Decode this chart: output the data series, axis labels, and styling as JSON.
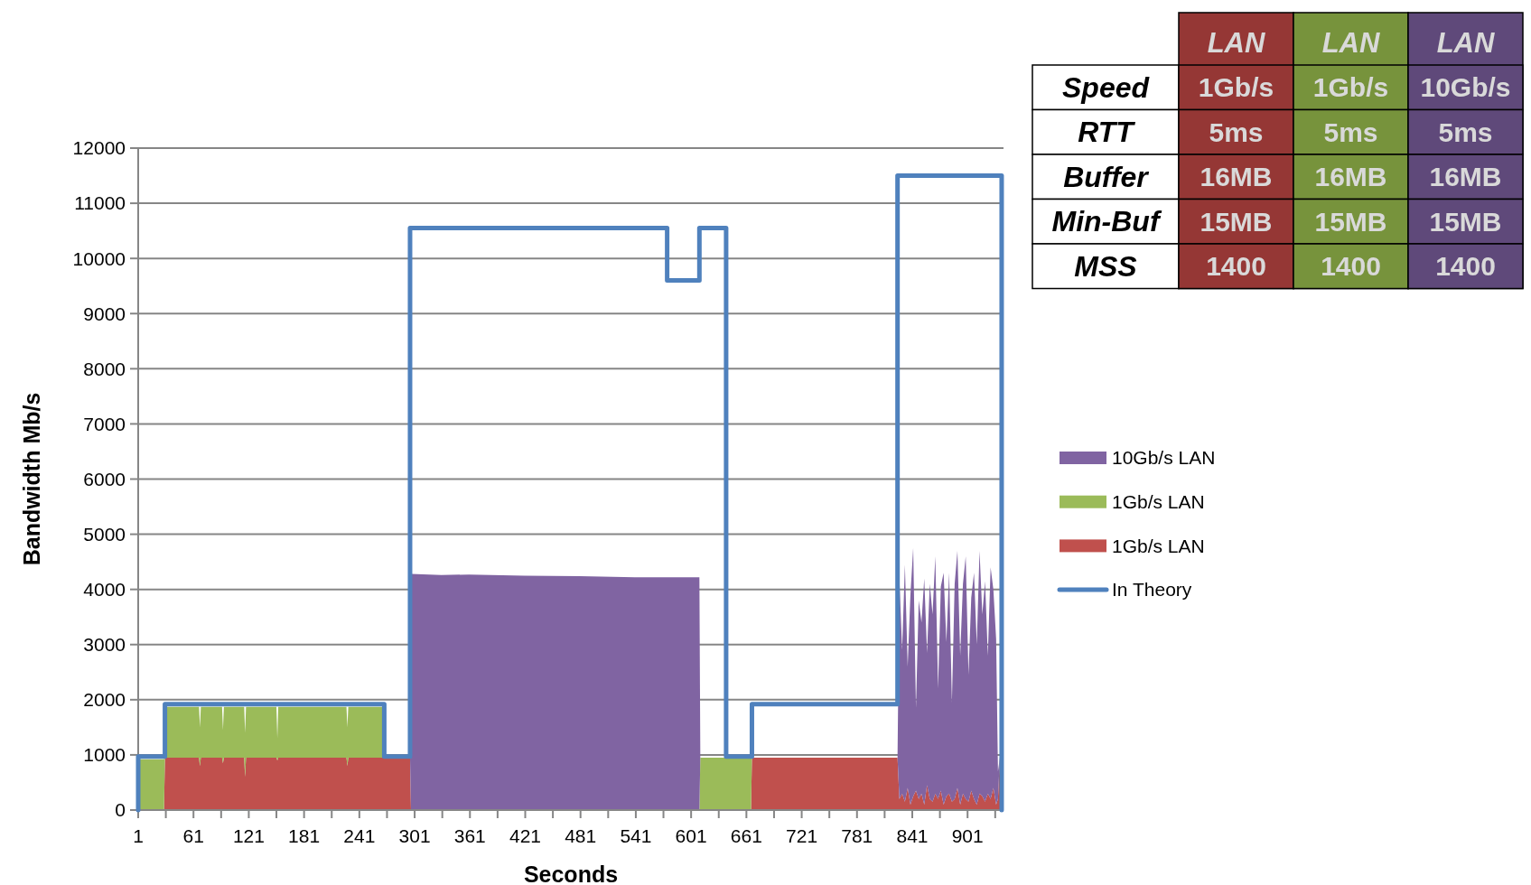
{
  "chart_data": [
    {
      "type": "area",
      "stacked": true,
      "xlabel": "Seconds",
      "ylabel": "Bandwidth Mb/s",
      "x": [
        1,
        29,
        30,
        67,
        68,
        69,
        92,
        93,
        94,
        116,
        117,
        118,
        151,
        152,
        153,
        227,
        228,
        229,
        267,
        268,
        296,
        297,
        330,
        360,
        420,
        480,
        540,
        610,
        611,
        666,
        667,
        825,
        827,
        830,
        833,
        836,
        839,
        842,
        845,
        848,
        851,
        854,
        857,
        860,
        863,
        866,
        869,
        872,
        875,
        878,
        881,
        884,
        887,
        890,
        893,
        896,
        899,
        902,
        905,
        908,
        911,
        914,
        917,
        920,
        923,
        926,
        929,
        932,
        934,
        936,
        938
      ],
      "series": [
        {
          "name": "1Gb/s LAN",
          "color": "#c0504d",
          "values": [
            0,
            0,
            950,
            950,
            800,
            950,
            950,
            850,
            950,
            950,
            600,
            950,
            950,
            900,
            950,
            950,
            800,
            950,
            950,
            950,
            950,
            0,
            0,
            0,
            0,
            0,
            0,
            0,
            0,
            0,
            950,
            950,
            200,
            300,
            150,
            400,
            100,
            250,
            350,
            200,
            300,
            100,
            450,
            200,
            150,
            300,
            200,
            350,
            100,
            250,
            300,
            150,
            200,
            400,
            100,
            300,
            200,
            150,
            350,
            200,
            100,
            300,
            250,
            150,
            300,
            200,
            400,
            100,
            200,
            950,
            950
          ]
        },
        {
          "name": "1Gb/s LAN",
          "color": "#9bbb59",
          "values": [
            920,
            920,
            920,
            920,
            700,
            920,
            920,
            600,
            920,
            920,
            800,
            920,
            920,
            400,
            920,
            920,
            700,
            920,
            920,
            0,
            0,
            0,
            0,
            0,
            0,
            0,
            0,
            0,
            950,
            950,
            0,
            0,
            0,
            0,
            0,
            0,
            0,
            0,
            0,
            0,
            0,
            0,
            0,
            0,
            0,
            0,
            0,
            0,
            0,
            0,
            0,
            0,
            0,
            0,
            0,
            0,
            0,
            0,
            0,
            0,
            0,
            0,
            0,
            0,
            0,
            0,
            0,
            0,
            0,
            0,
            0
          ]
        },
        {
          "name": "10Gb/s LAN",
          "color": "#8064a2",
          "values": [
            0,
            0,
            0,
            0,
            0,
            0,
            0,
            0,
            0,
            0,
            0,
            0,
            0,
            0,
            0,
            0,
            0,
            0,
            0,
            0,
            0,
            4280,
            4260,
            4270,
            4250,
            4240,
            4220,
            4220,
            0,
            0,
            0,
            0,
            4000,
            2600,
            4300,
            2200,
            3800,
            4500,
            1500,
            3600,
            3100,
            4100,
            2400,
            3900,
            3400,
            4300,
            2000,
            3700,
            4200,
            2800,
            4000,
            1800,
            3900,
            4300,
            2700,
            3800,
            4400,
            2300,
            3500,
            4100,
            2900,
            4400,
            3300,
            4000,
            2500,
            4200,
            3600,
            3000,
            500,
            0,
            0
          ]
        },
        {
          "name": "In Theory",
          "type": "line",
          "color": "#4f81bd",
          "x": [
            1,
            1,
            30,
            30,
            268,
            268,
            296,
            296,
            575,
            575,
            610,
            610,
            639,
            639,
            667,
            667,
            825,
            825,
            938,
            938
          ],
          "values": [
            0,
            970,
            970,
            1920,
            1920,
            970,
            970,
            10550,
            10550,
            9600,
            9600,
            10550,
            10550,
            970,
            970,
            1920,
            1920,
            11500,
            11500,
            0
          ]
        }
      ],
      "xlim": [
        1,
        940
      ],
      "xticks": [
        1,
        {
          "value": 31,
          "label": null
        },
        61,
        {
          "value": 91,
          "label": null
        },
        121,
        {
          "value": 151,
          "label": null
        },
        181,
        {
          "value": 211,
          "label": null
        },
        241,
        {
          "value": 271,
          "label": null
        },
        301,
        {
          "value": 331,
          "label": null
        },
        361,
        {
          "value": 391,
          "label": null
        },
        421,
        {
          "value": 451,
          "label": null
        },
        481,
        {
          "value": 511,
          "label": null
        },
        541,
        {
          "value": 571,
          "label": null
        },
        601,
        {
          "value": 631,
          "label": null
        },
        661,
        {
          "value": 691,
          "label": null
        },
        721,
        {
          "value": 751,
          "label": null
        },
        781,
        {
          "value": 811,
          "label": null
        },
        841,
        {
          "value": 871,
          "label": null
        },
        901,
        {
          "value": 931,
          "label": null
        }
      ],
      "ylim": [
        0,
        12000
      ],
      "yticks": [
        0,
        1000,
        2000,
        3000,
        4000,
        5000,
        6000,
        7000,
        8000,
        9000,
        10000,
        11000,
        12000
      ],
      "grid": "y",
      "legend": "right"
    },
    {
      "type": "other",
      "categories": [
        "LAN",
        "LAN",
        "LAN"
      ],
      "y_categories": [
        "Speed",
        "RTT",
        "Buffer",
        "Min-Buf",
        "MSS"
      ],
      "colors": [
        "#953735",
        "#77933c",
        "#5f497a"
      ],
      "cell_labels": [
        [
          "1Gb/s",
          "1Gb/s",
          "10Gb/s"
        ],
        [
          "5ms",
          "5ms",
          "5ms"
        ],
        [
          "16MB",
          "16MB",
          "16MB"
        ],
        [
          "15MB",
          "15MB",
          "15MB"
        ],
        [
          "1400",
          "1400",
          "1400"
        ]
      ]
    }
  ]
}
